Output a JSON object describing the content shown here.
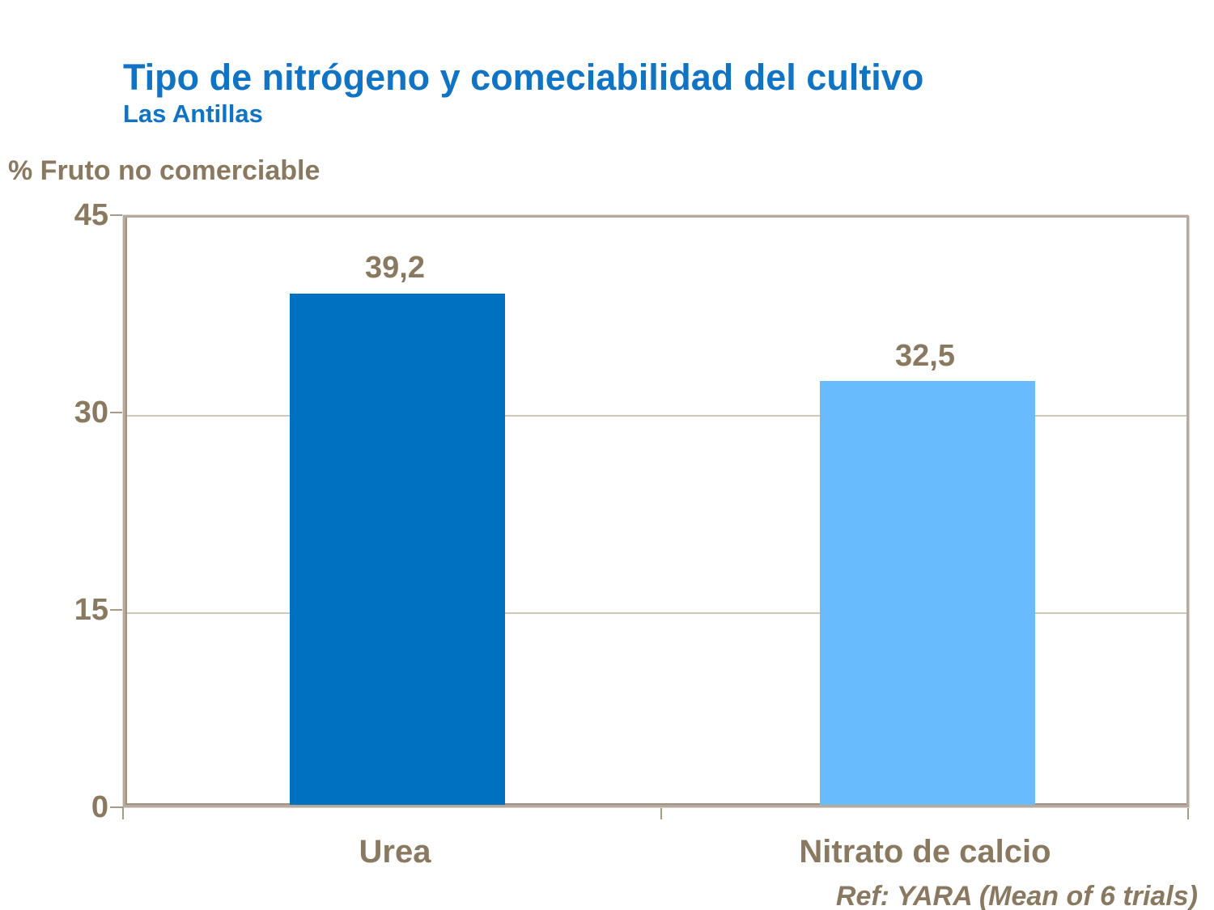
{
  "slide": {
    "title": "Tipo de nitrógeno y comeciabilidad del cultivo",
    "subtitle": "Las Antillas",
    "footer": "Ref: YARA (Mean of 6 trials)"
  },
  "chart_data": {
    "type": "bar",
    "title": "Tipo de nitrógeno y comeciabilidad del cultivo",
    "subtitle": "Las Antillas",
    "ylabel": "% Fruto no comerciable",
    "xlabel": "",
    "categories": [
      "Urea",
      "Nitrato de calcio"
    ],
    "values": [
      39.2,
      32.5
    ],
    "value_labels": [
      "39,2",
      "32,5"
    ],
    "bar_colors": [
      "#0070C0",
      "#68BCFD"
    ],
    "ylim": [
      0,
      45
    ],
    "yticks": [
      0,
      15,
      30,
      45
    ],
    "grid": "horizontal",
    "legend": "none",
    "annotation": "Ref: YARA (Mean of 6 trials)"
  },
  "colors": {
    "title_blue": "#1173C4",
    "text_brown": "#8A7961",
    "axis_frame": "#B5AA9D",
    "gridline": "#CFC7BA",
    "bar_dark_blue": "#0070C0",
    "bar_light_blue": "#68BCFD"
  }
}
